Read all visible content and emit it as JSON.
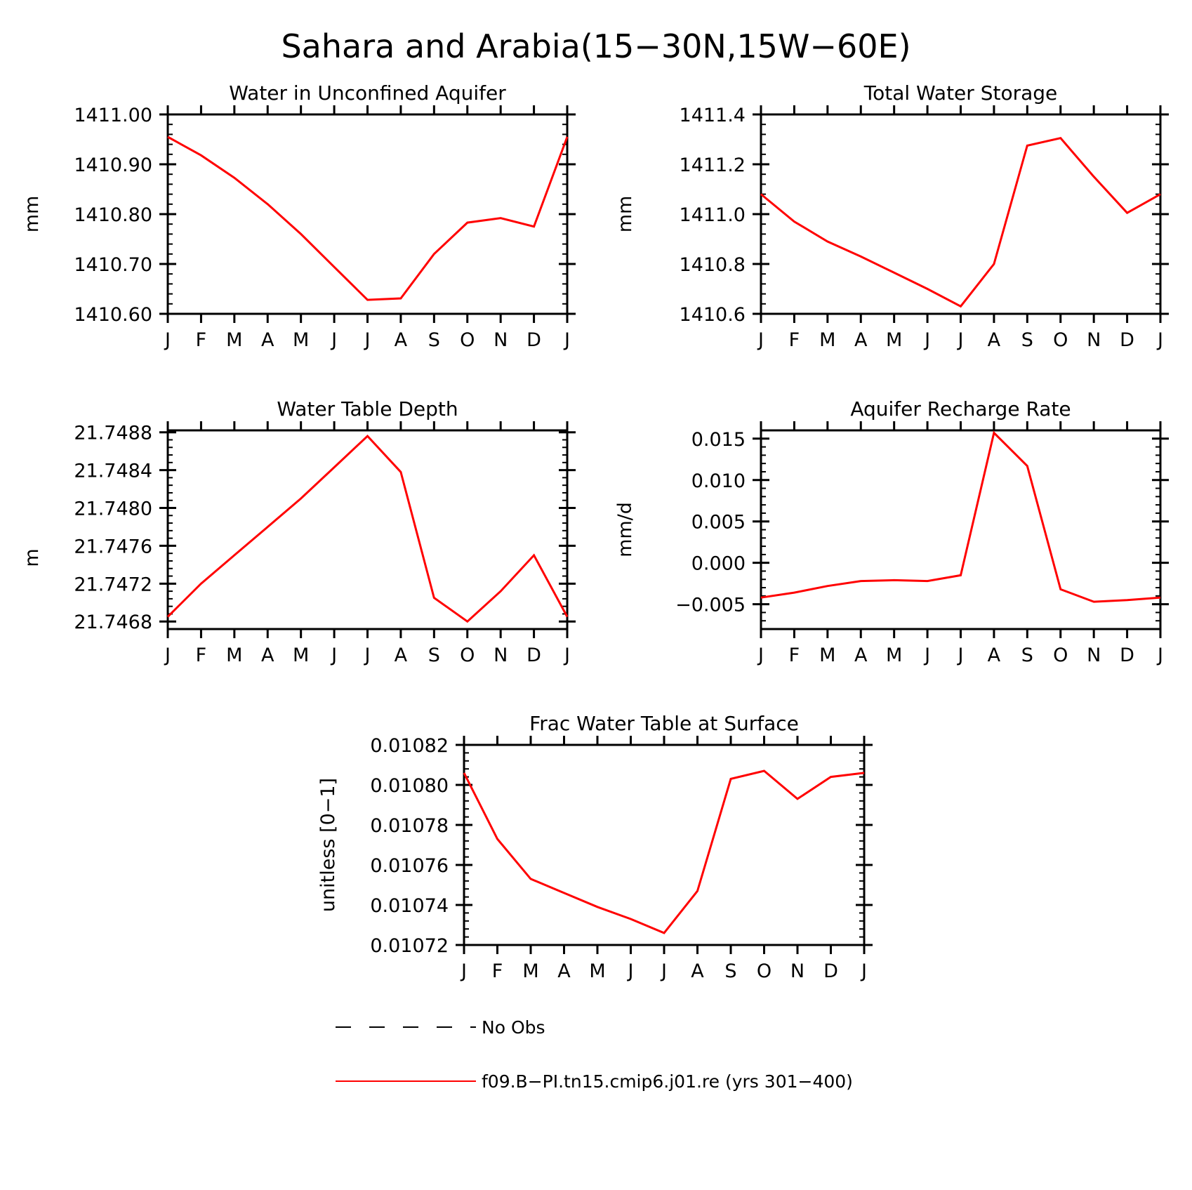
{
  "figure": {
    "title": "Sahara and Arabia(15−30N,15W−60E)"
  },
  "month_labels": [
    "J",
    "F",
    "M",
    "A",
    "M",
    "J",
    "J",
    "A",
    "S",
    "O",
    "N",
    "D",
    "J"
  ],
  "series_color": "#ff0000",
  "chart_data": [
    {
      "type": "line",
      "title": "Water in Unconfined Aquifer",
      "xlabel": "",
      "ylabel": "mm",
      "x": [
        "J",
        "F",
        "M",
        "A",
        "M",
        "J",
        "J",
        "A",
        "S",
        "O",
        "N",
        "D",
        "J"
      ],
      "ylim": [
        1410.6,
        1411.0
      ],
      "yticks": [
        "1410.60",
        "1410.70",
        "1410.80",
        "1410.90",
        "1411.00"
      ],
      "grid": false,
      "series": [
        {
          "name": "f09.B−PI.tn15.cmip6.j01.re (yrs 301−400)",
          "values": [
            1410.955,
            1410.918,
            1410.873,
            1410.82,
            1410.76,
            1410.694,
            1410.628,
            1410.631,
            1410.72,
            1410.783,
            1410.792,
            1410.775,
            1410.955
          ]
        }
      ]
    },
    {
      "type": "line",
      "title": "Total Water Storage",
      "xlabel": "",
      "ylabel": "mm",
      "x": [
        "J",
        "F",
        "M",
        "A",
        "M",
        "J",
        "J",
        "A",
        "S",
        "O",
        "N",
        "D",
        "J"
      ],
      "ylim": [
        1410.6,
        1411.4
      ],
      "yticks": [
        "1410.6",
        "1410.8",
        "1411.0",
        "1411.2",
        "1411.4"
      ],
      "grid": false,
      "series": [
        {
          "name": "f09.B−PI.tn15.cmip6.j01.re (yrs 301−400)",
          "values": [
            1411.08,
            1410.97,
            1410.89,
            1410.83,
            1410.765,
            1410.7,
            1410.63,
            1410.8,
            1411.275,
            1411.305,
            1411.15,
            1411.005,
            1411.08
          ]
        }
      ]
    },
    {
      "type": "line",
      "title": "Water Table Depth",
      "xlabel": "",
      "ylabel": "m",
      "x": [
        "J",
        "F",
        "M",
        "A",
        "M",
        "J",
        "J",
        "A",
        "S",
        "O",
        "N",
        "D",
        "J"
      ],
      "ylim": [
        21.74672,
        21.74882
      ],
      "yticks": [
        "21.7468",
        "21.7472",
        "21.7476",
        "21.7480",
        "21.7484",
        "21.7488"
      ],
      "grid": false,
      "series": [
        {
          "name": "f09.B−PI.tn15.cmip6.j01.re (yrs 301−400)",
          "values": [
            21.74685,
            21.7472,
            21.7475,
            21.7478,
            21.7481,
            21.74843,
            21.74876,
            21.74838,
            21.74705,
            21.7468,
            21.74712,
            21.7475,
            21.74685
          ]
        }
      ]
    },
    {
      "type": "line",
      "title": "Aquifer Recharge Rate",
      "xlabel": "",
      "ylabel": "mm/d",
      "x": [
        "J",
        "F",
        "M",
        "A",
        "M",
        "J",
        "J",
        "A",
        "S",
        "O",
        "N",
        "D",
        "J"
      ],
      "ylim": [
        -0.008,
        0.016
      ],
      "yticks": [
        "−0.005",
        "0.000",
        "0.005",
        "0.010",
        "0.015"
      ],
      "grid": false,
      "series": [
        {
          "name": "f09.B−PI.tn15.cmip6.j01.re (yrs 301−400)",
          "values": [
            -0.0042,
            -0.0036,
            -0.0028,
            -0.0022,
            -0.0021,
            -0.0022,
            -0.0015,
            0.0157,
            0.0117,
            -0.0032,
            -0.0047,
            -0.0045,
            -0.0042
          ]
        }
      ]
    },
    {
      "type": "line",
      "title": "Frac Water Table at Surface",
      "xlabel": "",
      "ylabel": "unitless [0−1]",
      "x": [
        "J",
        "F",
        "M",
        "A",
        "M",
        "J",
        "J",
        "A",
        "S",
        "O",
        "N",
        "D",
        "J"
      ],
      "ylim": [
        0.01072,
        0.01082
      ],
      "yticks": [
        "0.01072",
        "0.01074",
        "0.01076",
        "0.01078",
        "0.01080",
        "0.01082"
      ],
      "grid": false,
      "series": [
        {
          "name": "f09.B−PI.tn15.cmip6.j01.re (yrs 301−400)",
          "values": [
            0.010806,
            0.010773,
            0.010753,
            0.010746,
            0.010739,
            0.010733,
            0.010726,
            0.010747,
            0.010803,
            0.010807,
            0.010793,
            0.010804,
            0.010806
          ]
        }
      ]
    }
  ],
  "legend": {
    "items": [
      {
        "label": "No Obs",
        "style": "dashed",
        "color": "#000000"
      },
      {
        "label": "f09.B−PI.tn15.cmip6.j01.re (yrs 301−400)",
        "style": "solid",
        "color": "#ff0000"
      }
    ]
  }
}
